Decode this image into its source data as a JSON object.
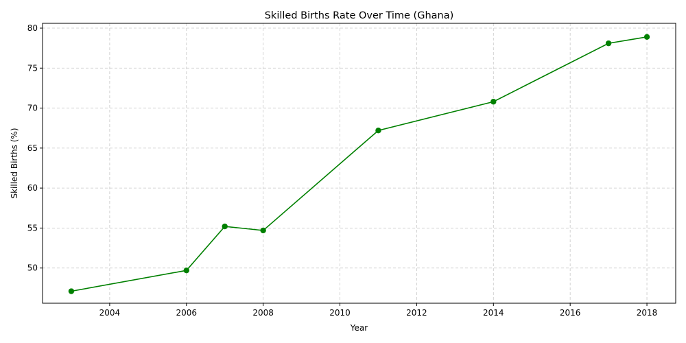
{
  "chart_data": {
    "type": "line",
    "title": "Skilled Births Rate Over Time (Ghana)",
    "xlabel": "Year",
    "ylabel": "Skilled Births (%)",
    "xlim": [
      2002.25,
      2018.75
    ],
    "ylim": [
      45.6,
      80.6
    ],
    "xticks": [
      2004,
      2006,
      2008,
      2010,
      2012,
      2014,
      2016,
      2018
    ],
    "yticks": [
      50,
      55,
      60,
      65,
      70,
      75,
      80
    ],
    "grid": true,
    "color": "#008000",
    "series": [
      {
        "x": [
          2003,
          2006,
          2007,
          2008,
          2011,
          2014,
          2017,
          2018
        ],
        "y": [
          47.1,
          49.7,
          55.2,
          54.7,
          67.2,
          70.8,
          78.1,
          78.9
        ]
      }
    ]
  }
}
